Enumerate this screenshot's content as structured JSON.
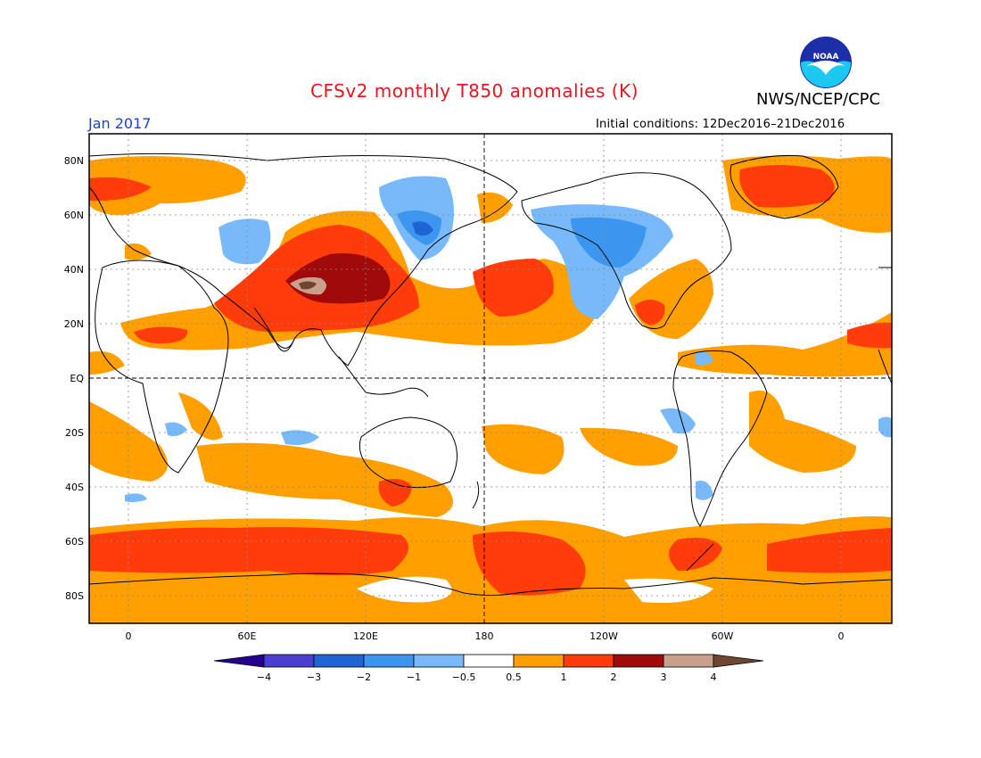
{
  "title": "CFSv2 monthly T850 anomalies (K)",
  "org": "NWS/NCEP/CPC",
  "period": "Jan 2017",
  "initial_conditions": "Initial conditions: 12Dec2016–21Dec2016",
  "logo_text": "NOAA",
  "lat_labels": [
    "80N",
    "60N",
    "40N",
    "20N",
    "EQ",
    "20S",
    "40S",
    "60S",
    "80S"
  ],
  "lon_labels": [
    "0",
    "60E",
    "120E",
    "180",
    "120W",
    "60W",
    "0"
  ],
  "colorbar": {
    "labels": [
      "−4",
      "−3",
      "−2",
      "−1",
      "−0.5",
      "0.5",
      "1",
      "2",
      "3",
      "4"
    ],
    "colors": [
      "#230090",
      "#4a3fd0",
      "#1e64d2",
      "#3c96f0",
      "#78b9fa",
      "#ffffff",
      "#ffa000",
      "#ff3c0a",
      "#a00a0a",
      "#c8a08c",
      "#6e4632"
    ]
  },
  "colors": {
    "warm1": "#ffa000",
    "warm2": "#ff3c0a",
    "warm3": "#a00a0a",
    "warm4": "#c8a08c",
    "cool1": "#78b9fa",
    "cool2": "#3c96f0",
    "cool3": "#1e64d2"
  }
}
